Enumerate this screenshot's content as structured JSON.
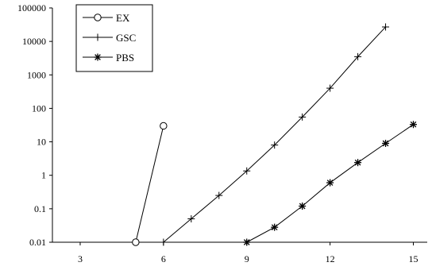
{
  "chart_data": {
    "type": "line",
    "y_scale": "log",
    "xlim": [
      2,
      15.5
    ],
    "ylim": [
      0.01,
      100000
    ],
    "x_ticks": [
      3,
      6,
      9,
      12,
      15
    ],
    "y_ticks": [
      0.01,
      0.1,
      1,
      10,
      100,
      1000,
      10000,
      100000
    ],
    "x_tick_labels": [
      "3",
      "6",
      "9",
      "12",
      "15"
    ],
    "y_tick_labels": [
      "0.01",
      "0.1",
      "1",
      "10",
      "100",
      "1000",
      "10000",
      "100000"
    ],
    "grid": false,
    "legend_position": "top-left",
    "series": [
      {
        "name": "EX",
        "marker": "circle",
        "x": [
          5,
          6
        ],
        "y": [
          0.01,
          30
        ]
      },
      {
        "name": "GSC",
        "marker": "plus",
        "x": [
          6,
          7,
          8,
          9,
          10,
          11,
          12,
          13,
          14
        ],
        "y": [
          0.01,
          0.05,
          0.25,
          1.35,
          8,
          55,
          400,
          3500,
          27000
        ]
      },
      {
        "name": "PBS",
        "marker": "asterisk",
        "x": [
          9,
          10,
          11,
          12,
          13,
          14,
          15
        ],
        "y": [
          0.01,
          0.028,
          0.12,
          0.6,
          2.4,
          9,
          33
        ]
      }
    ]
  }
}
